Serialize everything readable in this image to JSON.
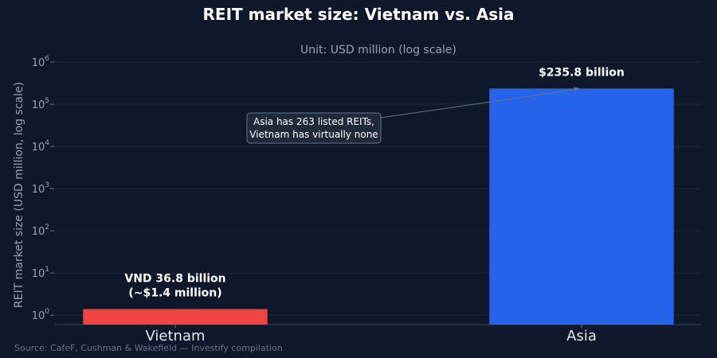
{
  "title": "REIT market size: Vietnam vs. Asia",
  "subtitle": "Unit: USD million (log scale)",
  "source": "Source: CafeF, Cushman & Wakefield — Investify compilation",
  "annotation": {
    "lines": [
      "Asia has 263 listed REITs,",
      "Vietnam has virtually none"
    ],
    "points_to": "Asia"
  },
  "colors": {
    "background": "#0f172a",
    "grid": "#1e293b",
    "vietnam_bar": "#ef4444",
    "asia_bar": "#2563eb",
    "annotation_box": "#1e293b",
    "annotation_border": "#64748b"
  },
  "chart_data": {
    "type": "bar",
    "categories": [
      "Vietnam",
      "Asia"
    ],
    "values": [
      1.4,
      235800
    ],
    "bar_labels": [
      [
        "VND 36.8 billion",
        "(~$1.4 million)"
      ],
      [
        "$235.8 billion"
      ]
    ],
    "bar_colors": [
      "#ef4444",
      "#2563eb"
    ],
    "ylabel": "REIT market size (USD million, log scale)",
    "xlabel": "",
    "yscale": "log",
    "ylim": [
      0.6,
      1000000
    ],
    "yticks": [
      1,
      10,
      100,
      1000,
      10000,
      100000,
      1000000
    ],
    "ytick_labels": [
      {
        "base": "10",
        "exp": "0"
      },
      {
        "base": "10",
        "exp": "1"
      },
      {
        "base": "10",
        "exp": "2"
      },
      {
        "base": "10",
        "exp": "3"
      },
      {
        "base": "10",
        "exp": "4"
      },
      {
        "base": "10",
        "exp": "5"
      },
      {
        "base": "10",
        "exp": "6"
      }
    ],
    "grid": true,
    "legend": "none"
  }
}
